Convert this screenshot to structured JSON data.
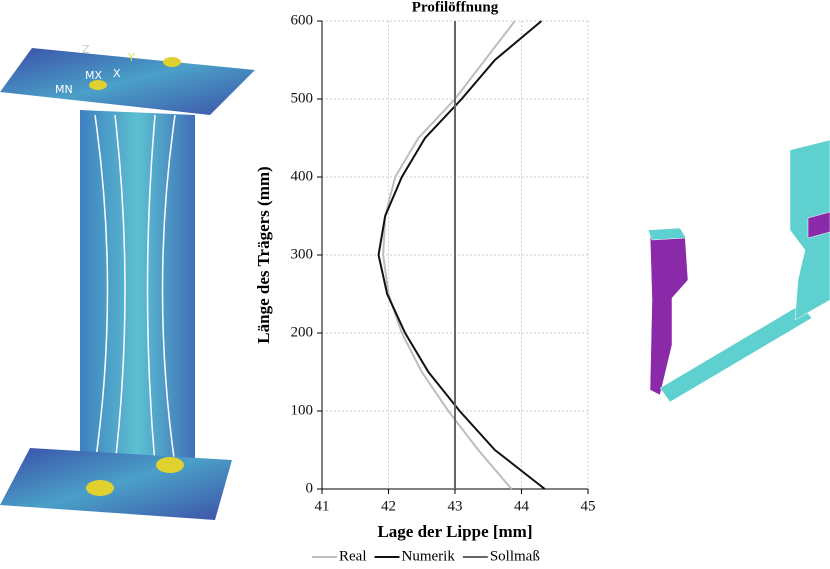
{
  "chart_data": {
    "type": "line",
    "title": "Profilöffnung",
    "x_label": "Lage der Lippe [mm]",
    "y_label": "Länge des Trägers (mm)",
    "xlim": [
      41,
      45
    ],
    "xticks": [
      41,
      42,
      43,
      44,
      45
    ],
    "ylim": [
      0,
      600
    ],
    "yticks": [
      0,
      100,
      200,
      300,
      400,
      500,
      600
    ],
    "grid": true,
    "legend": "bottom",
    "series": [
      {
        "name": "Real",
        "color": "#bdbdbd",
        "y": [
          0,
          50,
          100,
          150,
          200,
          250,
          300,
          350,
          400,
          450,
          500,
          550,
          600
        ],
        "values": [
          43.85,
          43.35,
          42.9,
          42.5,
          42.2,
          42.0,
          41.92,
          41.95,
          42.1,
          42.45,
          43.0,
          43.45,
          43.9
        ]
      },
      {
        "name": "Numerik",
        "color": "#111111",
        "y": [
          0,
          50,
          100,
          150,
          200,
          250,
          300,
          350,
          400,
          450,
          500,
          550,
          600
        ],
        "values": [
          44.35,
          43.6,
          43.07,
          42.6,
          42.25,
          41.98,
          41.85,
          41.95,
          42.2,
          42.55,
          43.1,
          43.6,
          44.3
        ]
      },
      {
        "name": "Sollmaß",
        "color": "#666666",
        "y": [
          0,
          600
        ],
        "values": [
          43,
          43
        ]
      }
    ]
  },
  "figure_labels": [
    "MN",
    "MX",
    "X",
    "Y",
    "Z"
  ]
}
